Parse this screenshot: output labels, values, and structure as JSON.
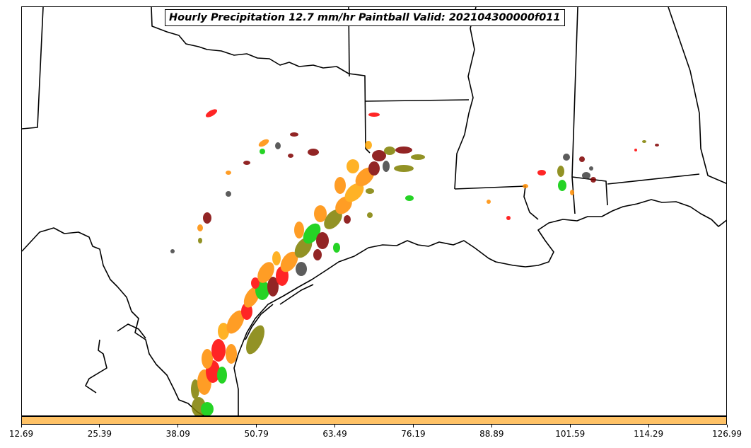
{
  "title": "Hourly Precipitation 12.7 mm/hr Paintball Valid: 202104300000f011",
  "colorbar": {
    "color": "#ffc266",
    "ticks": [
      "12.69",
      "25.39",
      "38.09",
      "50.79",
      "63.49",
      "76.19",
      "88.89",
      "101.59",
      "114.29",
      "126.99"
    ]
  },
  "map": {
    "region": "Southern Plains and Gulf Coast, United States",
    "coastline_color": "#000000",
    "paintball_colors": [
      "#ff0000",
      "#ff8c00",
      "#ffa500",
      "#00cc00",
      "#808000",
      "#800000",
      "#404040"
    ]
  }
}
